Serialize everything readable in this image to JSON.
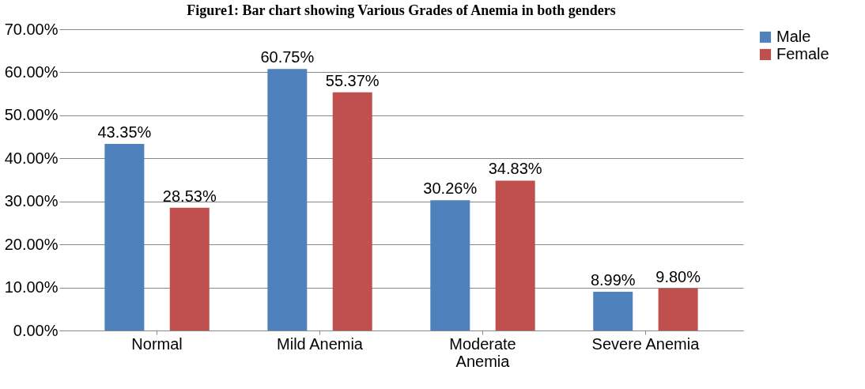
{
  "chart_data": {
    "type": "bar",
    "title": "Figure1:  Bar chart showing Various Grades of Anemia in both genders",
    "categories": [
      "Normal",
      "Mild Anemia",
      "Moderate Anemia",
      "Severe Anemia"
    ],
    "series": [
      {
        "name": "Male",
        "color": "#4f81bd",
        "values": [
          43.35,
          60.75,
          30.26,
          8.99
        ],
        "value_labels": [
          "43.35%",
          "60.75%",
          "30.26%",
          "8.99%"
        ]
      },
      {
        "name": "Female",
        "color": "#c0504d",
        "values": [
          28.53,
          55.37,
          34.83,
          9.8
        ],
        "value_labels": [
          "28.53%",
          "55.37%",
          "34.83%",
          "9.80%"
        ]
      }
    ],
    "ylim": [
      0,
      70
    ],
    "yticks": [
      {
        "value": 0,
        "label": "0.00%"
      },
      {
        "value": 10,
        "label": "10.00%"
      },
      {
        "value": 20,
        "label": "20.00%"
      },
      {
        "value": 30,
        "label": "30.00%"
      },
      {
        "value": 40,
        "label": "40.00%"
      },
      {
        "value": 50,
        "label": "50.00%"
      },
      {
        "value": 60,
        "label": "60.00%"
      },
      {
        "value": 70,
        "label": "70.00%"
      }
    ],
    "grid": "y",
    "legend": "right"
  }
}
